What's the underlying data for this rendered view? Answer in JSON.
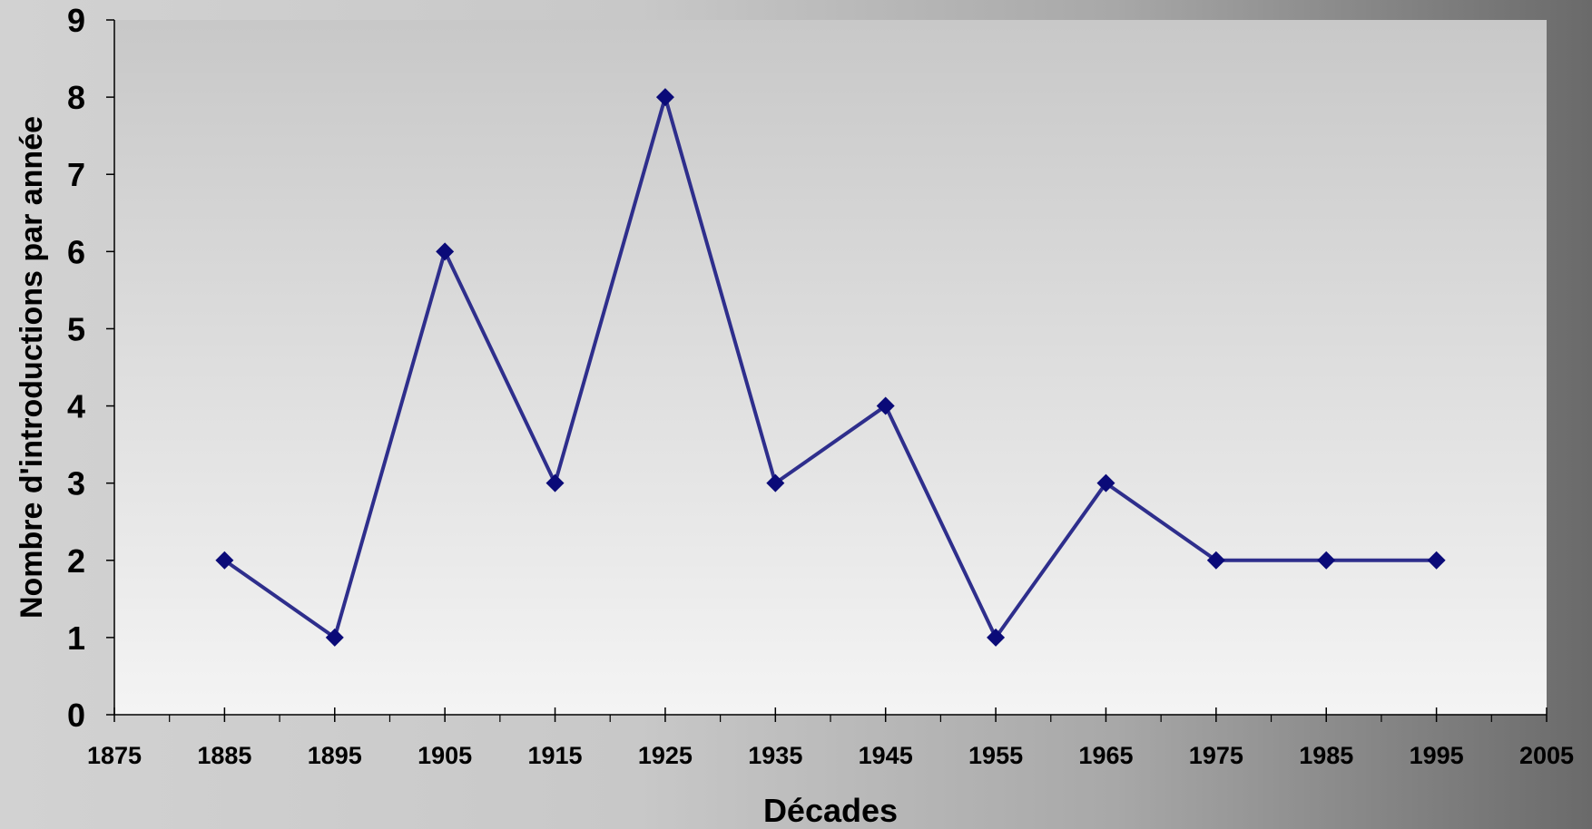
{
  "chart_data": {
    "type": "line",
    "title": "",
    "xlabel": "Décades",
    "ylabel": "Nombre d'introductions par année",
    "xlim": [
      1875,
      2005
    ],
    "ylim": [
      0,
      9
    ],
    "x_ticks": [
      1875,
      1885,
      1895,
      1905,
      1915,
      1925,
      1935,
      1945,
      1955,
      1965,
      1975,
      1985,
      1995,
      2005
    ],
    "y_ticks": [
      0,
      1,
      2,
      3,
      4,
      5,
      6,
      7,
      8,
      9
    ],
    "grid": false,
    "legend": "none",
    "series": [
      {
        "x": [
          1885,
          1895,
          1905,
          1915,
          1925,
          1935,
          1945,
          1955,
          1965,
          1975,
          1985,
          1995
        ],
        "y": [
          2,
          1,
          6,
          3,
          8,
          3,
          4,
          1,
          3,
          2,
          2,
          2
        ],
        "color": "#2e2e8c",
        "marker": "diamond",
        "marker_color": "#0a0a78"
      }
    ]
  }
}
